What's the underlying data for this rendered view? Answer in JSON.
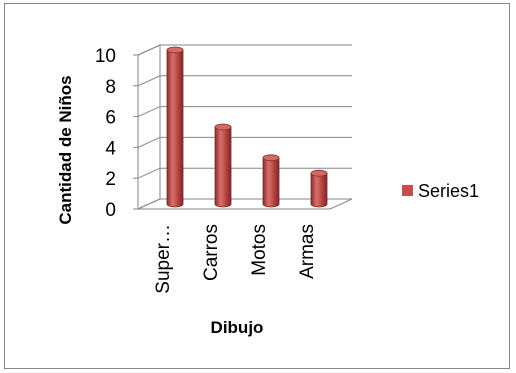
{
  "chart_data": {
    "type": "bar",
    "style": "3d-cylinder",
    "categories": [
      "Super…",
      "Carros",
      "Motos",
      "Armas"
    ],
    "series": [
      {
        "name": "Series1",
        "values": [
          10,
          5,
          3,
          2
        ],
        "color": "#c0504d"
      }
    ],
    "xlabel": "Dibujo",
    "ylabel": "Cantidad de Niños",
    "ylim": [
      0,
      10
    ],
    "yticks": [
      0,
      2,
      4,
      6,
      8,
      10
    ],
    "grid": true,
    "legend_position": "right"
  }
}
